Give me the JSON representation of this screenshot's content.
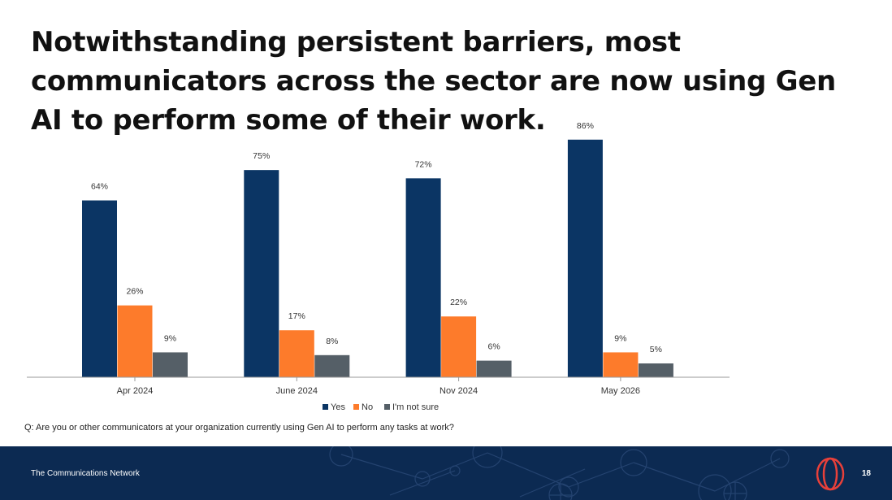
{
  "title": "Notwithstanding persistent barriers, most communicators across the sector are now using Gen AI to perform some of their work.",
  "question": "Q: Are you or other communicators at your organization currently using Gen AI to perform any tasks at work?",
  "footer": {
    "org": "The Communications Network",
    "page": "18",
    "logo_icon": "network-logo-icon"
  },
  "colors": {
    "yes": "#0b3564",
    "no": "#fd7b2b",
    "not_sure": "#555f67",
    "footer_bg": "#0c2a52",
    "logo": "#e8403a"
  },
  "chart_data": {
    "type": "bar",
    "categories": [
      "Apr 2024",
      "June 2024",
      "Nov 2024",
      "May 2026"
    ],
    "series": [
      {
        "name": "Yes",
        "values": [
          64,
          75,
          72,
          86
        ]
      },
      {
        "name": "No",
        "values": [
          26,
          17,
          22,
          9
        ]
      },
      {
        "name": "I'm not sure",
        "values": [
          9,
          8,
          6,
          5
        ]
      }
    ],
    "value_suffix": "%",
    "legend_position": "bottom",
    "grid": false,
    "ylim": [
      0,
      90
    ]
  }
}
